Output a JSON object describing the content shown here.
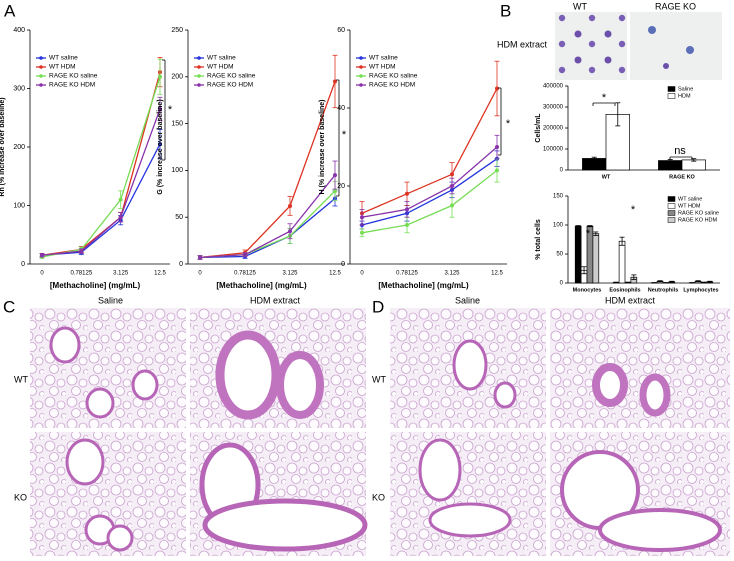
{
  "panel_labels": [
    "A",
    "B",
    "C",
    "D"
  ],
  "micrographs": {
    "b": {
      "columns": [
        "WT",
        "RAGE KO"
      ],
      "row": "HDM extract"
    },
    "c": {
      "columns": [
        "Saline",
        "HDM extract"
      ],
      "rows": [
        "WT",
        "KO"
      ]
    },
    "d": {
      "columns": [
        "Saline",
        "HDM extract"
      ],
      "rows": [
        "WT",
        "KO"
      ]
    }
  },
  "chart_data": [
    {
      "type": "line",
      "ylabel": "Rn (% increase over baseline)",
      "xlabel": "[Methacholine] (mg/mL)",
      "categories": [
        "0",
        "0.78125",
        "3.125",
        "12.5"
      ],
      "ylim": [
        0,
        400
      ],
      "yticks": [
        0,
        100,
        200,
        300,
        400
      ],
      "legend": "upper left",
      "series": [
        {
          "name": "WT saline",
          "color": "#2233dd",
          "values": [
            15,
            20,
            75,
            205
          ],
          "errors": [
            3,
            4,
            8,
            25
          ]
        },
        {
          "name": "WT HDM",
          "color": "#dd3322",
          "values": [
            15,
            25,
            80,
            328
          ],
          "errors": [
            3,
            5,
            8,
            25
          ]
        },
        {
          "name": "RAGE KO saline",
          "color": "#77dd55",
          "values": [
            12,
            25,
            110,
            320
          ],
          "errors": [
            2,
            4,
            15,
            30
          ]
        },
        {
          "name": "RAGE KO HDM",
          "color": "#8833aa",
          "values": [
            15,
            22,
            80,
            265
          ],
          "errors": [
            3,
            4,
            8,
            20
          ]
        }
      ],
      "annotations": [
        "*"
      ]
    },
    {
      "type": "line",
      "ylabel": "G (% increase over baseline)",
      "xlabel": "[Methacholine] (mg/mL)",
      "categories": [
        "0",
        "0.78125",
        "3.125",
        "12.5"
      ],
      "ylim": [
        0,
        250
      ],
      "yticks": [
        0,
        50,
        100,
        150,
        200,
        250
      ],
      "legend": "upper left",
      "series": [
        {
          "name": "WT saline",
          "color": "#2233dd",
          "values": [
            7,
            8,
            30,
            70
          ],
          "errors": [
            2,
            2,
            8,
            8
          ]
        },
        {
          "name": "WT HDM",
          "color": "#dd3322",
          "values": [
            7,
            12,
            62,
            195
          ],
          "errors": [
            2,
            3,
            10,
            28
          ]
        },
        {
          "name": "RAGE KO saline",
          "color": "#77dd55",
          "values": [
            7,
            10,
            30,
            78
          ],
          "errors": [
            2,
            2,
            8,
            10
          ]
        },
        {
          "name": "RAGE KO HDM",
          "color": "#8833aa",
          "values": [
            7,
            10,
            35,
            95
          ],
          "errors": [
            2,
            2,
            8,
            15
          ]
        }
      ],
      "annotations": [
        "*"
      ]
    },
    {
      "type": "line",
      "ylabel": "H (% increase over baseline)",
      "xlabel": "[Methacholine] (mg/mL)",
      "categories": [
        "0",
        "0.78125",
        "3.125",
        "12.5"
      ],
      "ylim": [
        0,
        60
      ],
      "yticks": [
        0,
        20,
        40,
        60
      ],
      "legend": "upper left",
      "series": [
        {
          "name": "WT saline",
          "color": "#2233dd",
          "values": [
            10,
            13,
            19,
            27
          ],
          "errors": [
            1,
            2,
            2,
            2
          ]
        },
        {
          "name": "WT HDM",
          "color": "#dd3322",
          "values": [
            13,
            18,
            23,
            45
          ],
          "errors": [
            3,
            3,
            3,
            7
          ]
        },
        {
          "name": "RAGE KO saline",
          "color": "#77dd55",
          "values": [
            8,
            10,
            15,
            24
          ],
          "errors": [
            1,
            2,
            3,
            3
          ]
        },
        {
          "name": "RAGE KO HDM",
          "color": "#8833aa",
          "values": [
            12,
            14,
            20,
            30
          ],
          "errors": [
            2,
            2,
            2,
            3
          ]
        }
      ],
      "annotations": [
        "*"
      ]
    },
    {
      "type": "bar",
      "ylabel": "Cells/mL",
      "categories": [
        "WT",
        "RAGE KO"
      ],
      "ylim": [
        0,
        400000
      ],
      "yticks": [
        0,
        100000,
        200000,
        300000,
        400000
      ],
      "legend": "upper right",
      "series": [
        {
          "name": "Saline",
          "color": "#000000",
          "values": [
            55000,
            45000
          ],
          "errors": [
            6000,
            5000
          ]
        },
        {
          "name": "HDM",
          "color": "#ffffff",
          "values": [
            265000,
            48000
          ],
          "errors": [
            55000,
            6000
          ]
        }
      ],
      "annotations": [
        "*",
        "ns"
      ]
    },
    {
      "type": "bar",
      "ylabel": "% total cells",
      "categories": [
        "Monocytes",
        "Eosinophils",
        "Neutrophils",
        "Lymphocytes"
      ],
      "ylim": [
        0,
        150
      ],
      "yticks": [
        0,
        50,
        100,
        150
      ],
      "legend": "upper right",
      "series": [
        {
          "name": "WT saline",
          "color": "#000000",
          "values": [
            98,
            1,
            0.5,
            0.5
          ],
          "errors": [
            1,
            0.5,
            0.3,
            0.3
          ]
        },
        {
          "name": "WT HDM",
          "color": "#ffffff",
          "values": [
            22,
            72,
            3,
            3
          ],
          "errors": [
            6,
            7,
            1,
            1
          ]
        },
        {
          "name": "RAGE KO saline",
          "color": "#888888",
          "values": [
            98,
            1,
            0.5,
            1
          ],
          "errors": [
            1,
            0.5,
            0.3,
            0.5
          ]
        },
        {
          "name": "RAGE KO HDM",
          "color": "#cccccc",
          "values": [
            85,
            10,
            2,
            2
          ],
          "errors": [
            3,
            4,
            1,
            1
          ]
        }
      ],
      "annotations": [
        "*",
        "*"
      ]
    }
  ]
}
